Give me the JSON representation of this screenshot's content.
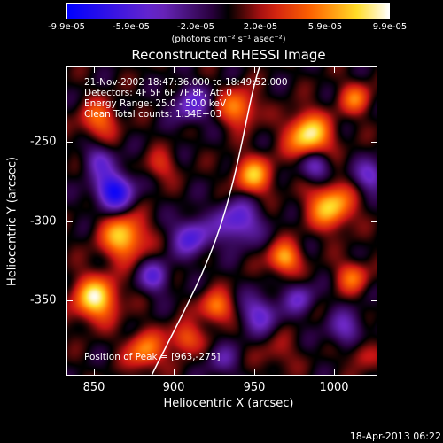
{
  "colorbar": {
    "tick_labels": [
      "-9.9e-05",
      "-5.9e-05",
      "-2.0e-05",
      "2.0e-05",
      "5.9e-05",
      "9.9e-05"
    ],
    "units_label": "(photons cm⁻² s⁻¹ asec⁻²)"
  },
  "plot": {
    "title": "Reconstructed RHESSI Image",
    "info_lines": [
      "21-Nov-2002 18:47:36.000 to 18:49:52.000",
      "Detectors: 4F 5F 6F 7F 8F, Att 0",
      "Energy Range: 25.0 - 50.0 keV",
      "Clean    Total counts: 1.34E+03"
    ],
    "peak_text": "Position of Peak = [963,-275]",
    "xlabel": "Heliocentric X (arcsec)",
    "ylabel": "Heliocentric Y (arcsec)",
    "xtick_labels": [
      "850",
      "900",
      "950",
      "1000"
    ],
    "ytick_labels": [
      "-250",
      "-300",
      "-350"
    ]
  },
  "timestamp": "18-Apr-2013 06:22",
  "chart_data": {
    "type": "heatmap",
    "title": "Reconstructed RHESSI Image",
    "xlabel": "Heliocentric X (arcsec)",
    "ylabel": "Heliocentric Y (arcsec)",
    "xlim": [
      833,
      1027
    ],
    "ylim": [
      -393,
      -200
    ],
    "color_range": [
      -9.9e-05,
      9.9e-05
    ],
    "colormap": "blue-purple-red-yellow-white",
    "peak_position": [
      963,
      -275
    ],
    "limb_curve_x": [
      885,
      905,
      923,
      937,
      952,
      960
    ],
    "limb_curve_y": [
      -393,
      -350,
      -300,
      -255,
      -210,
      -200
    ]
  }
}
